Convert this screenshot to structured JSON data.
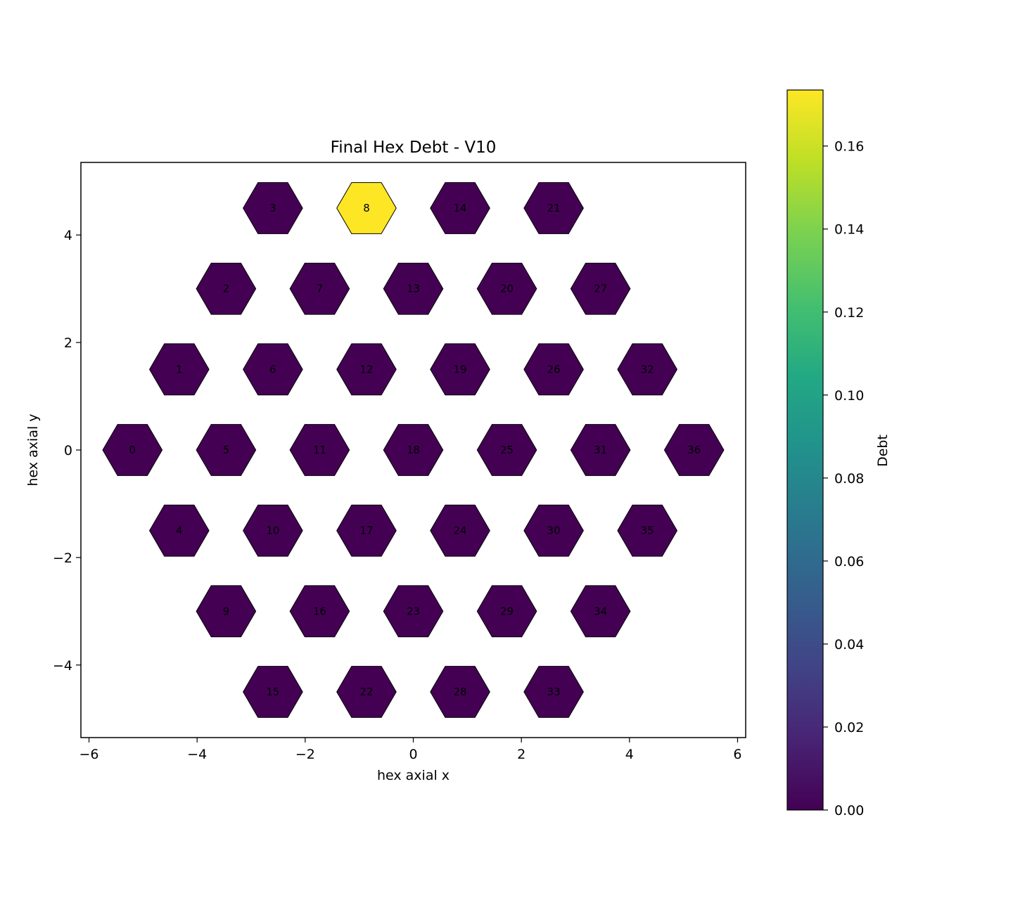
{
  "chart_data": {
    "type": "heatmap",
    "title": "Final Hex Debt - V10",
    "xlabel": "hex axial x",
    "ylabel": "hex axial y",
    "xlim": [
      -6.15,
      6.15
    ],
    "ylim": [
      -5.35,
      5.35
    ],
    "x_ticks": [
      {
        "value": -6,
        "label": "−6"
      },
      {
        "value": -4,
        "label": "−4"
      },
      {
        "value": -2,
        "label": "−2"
      },
      {
        "value": 0,
        "label": "0"
      },
      {
        "value": 2,
        "label": "2"
      },
      {
        "value": 4,
        "label": "4"
      },
      {
        "value": 6,
        "label": "6"
      }
    ],
    "y_ticks": [
      {
        "value": -4,
        "label": "−4"
      },
      {
        "value": -2,
        "label": "−2"
      },
      {
        "value": 0,
        "label": "0"
      },
      {
        "value": 2,
        "label": "2"
      },
      {
        "value": 4,
        "label": "4"
      }
    ],
    "colorbar": {
      "label": "Debt",
      "colormap": "viridis",
      "range": [
        0,
        0.1735
      ],
      "ticks": [
        {
          "value": 0.0,
          "label": "0.00"
        },
        {
          "value": 0.02,
          "label": "0.02"
        },
        {
          "value": 0.04,
          "label": "0.04"
        },
        {
          "value": 0.06,
          "label": "0.06"
        },
        {
          "value": 0.08,
          "label": "0.08"
        },
        {
          "value": 0.1,
          "label": "0.10"
        },
        {
          "value": 0.12,
          "label": "0.12"
        },
        {
          "value": 0.14,
          "label": "0.14"
        },
        {
          "value": 0.16,
          "label": "0.16"
        }
      ]
    },
    "cells": [
      {
        "id": "0",
        "x": -5.196,
        "y": 0.0,
        "value": 0.0
      },
      {
        "id": "1",
        "x": -4.33,
        "y": 1.5,
        "value": 0.0
      },
      {
        "id": "2",
        "x": -3.464,
        "y": 3.0,
        "value": 0.0
      },
      {
        "id": "3",
        "x": -2.598,
        "y": 4.5,
        "value": 0.0
      },
      {
        "id": "4",
        "x": -4.33,
        "y": -1.5,
        "value": 0.0
      },
      {
        "id": "5",
        "x": -3.464,
        "y": 0.0,
        "value": 0.0
      },
      {
        "id": "6",
        "x": -2.598,
        "y": 1.5,
        "value": 0.0
      },
      {
        "id": "7",
        "x": -1.732,
        "y": 3.0,
        "value": 0.0
      },
      {
        "id": "8",
        "x": -0.866,
        "y": 4.5,
        "value": 0.1735
      },
      {
        "id": "9",
        "x": -3.464,
        "y": -3.0,
        "value": 0.0
      },
      {
        "id": "10",
        "x": -2.598,
        "y": -1.5,
        "value": 0.0
      },
      {
        "id": "11",
        "x": -1.732,
        "y": 0.0,
        "value": 0.0
      },
      {
        "id": "12",
        "x": -0.866,
        "y": 1.5,
        "value": 0.0
      },
      {
        "id": "13",
        "x": 0.0,
        "y": 3.0,
        "value": 0.0
      },
      {
        "id": "14",
        "x": 0.866,
        "y": 4.5,
        "value": 0.0
      },
      {
        "id": "15",
        "x": -2.598,
        "y": -4.5,
        "value": 0.0
      },
      {
        "id": "16",
        "x": -1.732,
        "y": -3.0,
        "value": 0.0
      },
      {
        "id": "17",
        "x": -0.866,
        "y": -1.5,
        "value": 0.0
      },
      {
        "id": "18",
        "x": 0.0,
        "y": 0.0,
        "value": 0.0
      },
      {
        "id": "19",
        "x": 0.866,
        "y": 1.5,
        "value": 0.0
      },
      {
        "id": "20",
        "x": 1.732,
        "y": 3.0,
        "value": 0.0
      },
      {
        "id": "21",
        "x": 2.598,
        "y": 4.5,
        "value": 0.0
      },
      {
        "id": "22",
        "x": -0.866,
        "y": -4.5,
        "value": 0.0
      },
      {
        "id": "23",
        "x": 0.0,
        "y": -3.0,
        "value": 0.0
      },
      {
        "id": "24",
        "x": 0.866,
        "y": -1.5,
        "value": 0.0
      },
      {
        "id": "25",
        "x": 1.732,
        "y": 0.0,
        "value": 0.0
      },
      {
        "id": "26",
        "x": 2.598,
        "y": 1.5,
        "value": 0.0
      },
      {
        "id": "27",
        "x": 3.464,
        "y": 3.0,
        "value": 0.0
      },
      {
        "id": "28",
        "x": 0.866,
        "y": -4.5,
        "value": 0.0
      },
      {
        "id": "29",
        "x": 1.732,
        "y": -3.0,
        "value": 0.0
      },
      {
        "id": "30",
        "x": 2.598,
        "y": -1.5,
        "value": 0.0
      },
      {
        "id": "31",
        "x": 3.464,
        "y": 0.0,
        "value": 0.0
      },
      {
        "id": "32",
        "x": 4.33,
        "y": 1.5,
        "value": 0.0
      },
      {
        "id": "33",
        "x": 2.598,
        "y": -4.5,
        "value": 0.0
      },
      {
        "id": "34",
        "x": 3.464,
        "y": -3.0,
        "value": 0.0
      },
      {
        "id": "35",
        "x": 4.33,
        "y": -1.5,
        "value": 0.0
      },
      {
        "id": "36",
        "x": 5.196,
        "y": 0.0,
        "value": 0.0
      }
    ]
  }
}
